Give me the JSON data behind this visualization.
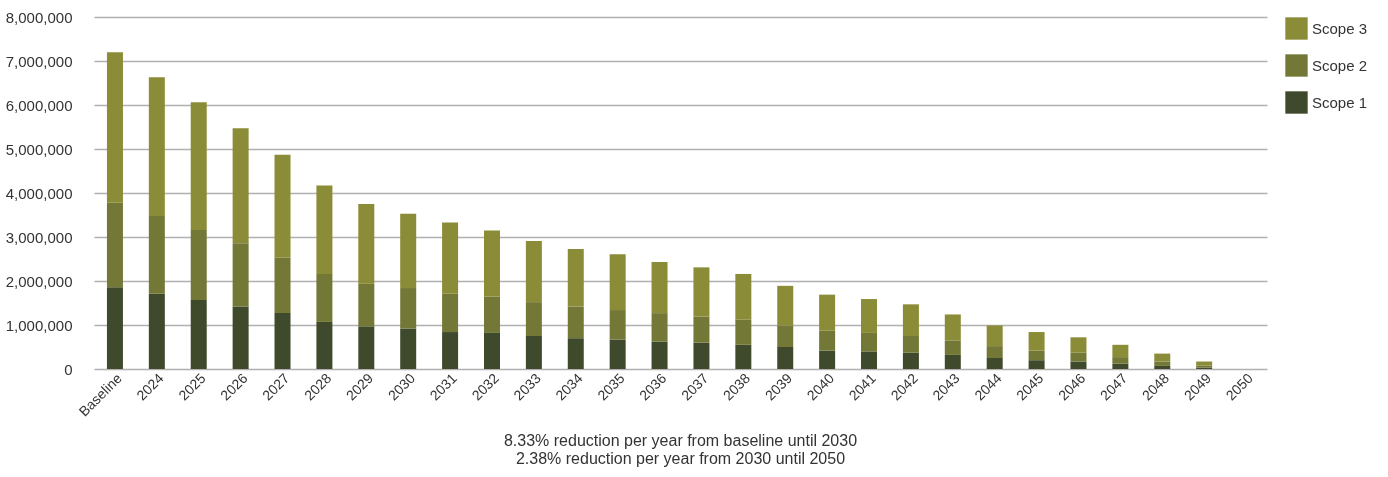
{
  "chart_data": {
    "type": "bar",
    "stacked": true,
    "categories": [
      "Baseline",
      "2024",
      "2025",
      "2026",
      "2027",
      "2028",
      "2029",
      "2030",
      "2031",
      "2032",
      "2033",
      "2034",
      "2035",
      "2036",
      "2037",
      "2038",
      "2039",
      "2040",
      "2041",
      "2042",
      "2043",
      "2044",
      "2045",
      "2046",
      "2047",
      "2048",
      "2049",
      "2050"
    ],
    "series": [
      {
        "name": "Scope 1",
        "color": "#3f4a2c",
        "values": [
          1860000,
          1710000,
          1570000,
          1420000,
          1270000,
          1070000,
          970000,
          920000,
          840000,
          820000,
          750000,
          700000,
          670000,
          620000,
          600000,
          550000,
          500000,
          420000,
          400000,
          370000,
          320000,
          250000,
          200000,
          170000,
          120000,
          70000,
          30000,
          0
        ]
      },
      {
        "name": "Scope 2",
        "color": "#737837",
        "values": [
          1920000,
          1770000,
          1590000,
          1440000,
          1260000,
          1090000,
          970000,
          920000,
          870000,
          820000,
          770000,
          720000,
          670000,
          650000,
          590000,
          570000,
          490000,
          450000,
          420000,
          380000,
          330000,
          270000,
          220000,
          200000,
          150000,
          100000,
          50000,
          0
        ]
      },
      {
        "name": "Scope 3",
        "color": "#8b8c37",
        "values": [
          3420000,
          3150000,
          2900000,
          2610000,
          2340000,
          2010000,
          1810000,
          1690000,
          1620000,
          1510000,
          1390000,
          1310000,
          1270000,
          1160000,
          1120000,
          1040000,
          900000,
          820000,
          770000,
          720000,
          590000,
          470000,
          420000,
          350000,
          280000,
          180000,
          90000,
          0
        ]
      }
    ],
    "ylim": [
      0,
      8000000
    ],
    "yticks": [
      0,
      {
        "value": 1000000,
        "label": "1,000,000"
      },
      {
        "value": 2000000,
        "label": "2,000,000"
      },
      {
        "value": 3000000,
        "label": "3,000,000"
      },
      {
        "value": 4000000,
        "label": "4,000,000"
      },
      {
        "value": 5000000,
        "label": "5,000,000"
      },
      {
        "value": 6000000,
        "label": "6,000,000"
      },
      {
        "value": 7000000,
        "label": "7,000,000"
      },
      {
        "value": 8000000,
        "label": "8,000,000"
      }
    ],
    "grid": "y",
    "legend": "right",
    "annotations": [
      "8.33% reduction per year from baseline until 2030",
      "2.38% reduction per year from 2030 until 2050"
    ]
  }
}
